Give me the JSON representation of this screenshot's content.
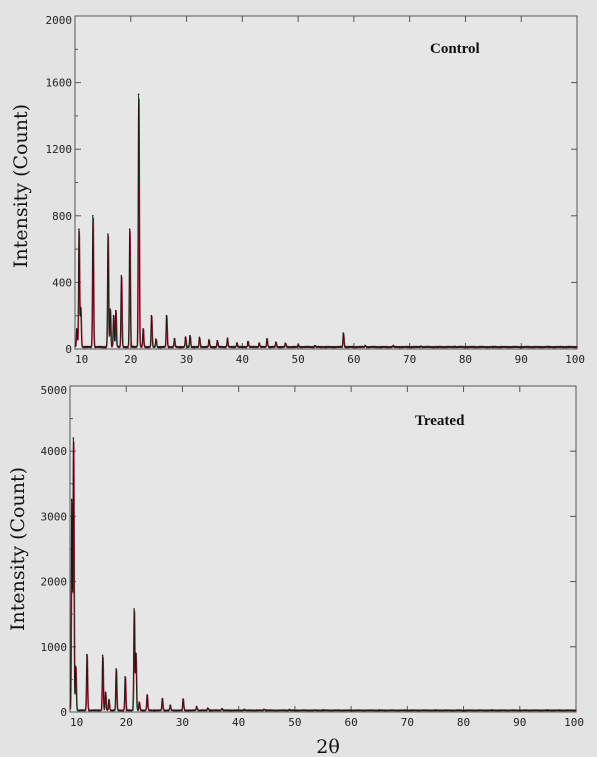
{
  "figure": {
    "background": "#e3e3e3",
    "xlabel": "2θ"
  },
  "chart_data": [
    {
      "type": "line",
      "title": "Control",
      "xlabel": "",
      "ylabel": "Intensity (Count)",
      "xlim": [
        10,
        100
      ],
      "ylim": [
        0,
        2000
      ],
      "xticks": [
        10,
        20,
        30,
        40,
        50,
        60,
        70,
        80,
        90,
        100
      ],
      "yticks": [
        0,
        400,
        800,
        1200,
        1600,
        2000
      ],
      "grid": false,
      "colors": {
        "trace": "#1a1a1a",
        "fit": "#b3202a",
        "frame": "#555555"
      },
      "baseline": 12,
      "peaks": [
        {
          "x": 10.3,
          "y": 120
        },
        {
          "x": 10.7,
          "y": 720
        },
        {
          "x": 11.0,
          "y": 250
        },
        {
          "x": 13.2,
          "y": 800
        },
        {
          "x": 15.9,
          "y": 690
        },
        {
          "x": 16.3,
          "y": 240
        },
        {
          "x": 16.9,
          "y": 200
        },
        {
          "x": 17.3,
          "y": 230
        },
        {
          "x": 18.3,
          "y": 440
        },
        {
          "x": 19.8,
          "y": 720
        },
        {
          "x": 21.4,
          "y": 1530
        },
        {
          "x": 22.2,
          "y": 120
        },
        {
          "x": 23.7,
          "y": 200
        },
        {
          "x": 24.5,
          "y": 60
        },
        {
          "x": 26.4,
          "y": 200
        },
        {
          "x": 27.8,
          "y": 60
        },
        {
          "x": 29.8,
          "y": 70
        },
        {
          "x": 30.6,
          "y": 80
        },
        {
          "x": 32.3,
          "y": 70
        },
        {
          "x": 34.0,
          "y": 55
        },
        {
          "x": 35.5,
          "y": 50
        },
        {
          "x": 37.3,
          "y": 60
        },
        {
          "x": 39.0,
          "y": 35
        },
        {
          "x": 41.0,
          "y": 45
        },
        {
          "x": 43.0,
          "y": 35
        },
        {
          "x": 44.4,
          "y": 60
        },
        {
          "x": 46.0,
          "y": 40
        },
        {
          "x": 47.7,
          "y": 35
        },
        {
          "x": 50.0,
          "y": 25
        },
        {
          "x": 53.0,
          "y": 20
        },
        {
          "x": 58.1,
          "y": 95
        },
        {
          "x": 62.0,
          "y": 20
        },
        {
          "x": 67.0,
          "y": 18
        },
        {
          "x": 72.0,
          "y": 16
        },
        {
          "x": 78.0,
          "y": 15
        }
      ]
    },
    {
      "type": "line",
      "title": "Treated",
      "xlabel": "2θ",
      "ylabel": "Intensity (Count)",
      "xlim": [
        10,
        100
      ],
      "ylim": [
        0,
        5000
      ],
      "xticks": [
        10,
        20,
        30,
        40,
        50,
        60,
        70,
        80,
        90,
        100
      ],
      "yticks": [
        0,
        1000,
        2000,
        3000,
        4000,
        5000
      ],
      "grid": false,
      "colors": {
        "trace": "#1a1a1a",
        "fit": "#b3202a",
        "frame": "#555555"
      },
      "baseline": 25,
      "peaks": [
        {
          "x": 10.3,
          "y": 3250
        },
        {
          "x": 10.6,
          "y": 4200
        },
        {
          "x": 11.0,
          "y": 700
        },
        {
          "x": 13.0,
          "y": 880
        },
        {
          "x": 15.8,
          "y": 870
        },
        {
          "x": 16.3,
          "y": 300
        },
        {
          "x": 16.9,
          "y": 180
        },
        {
          "x": 18.2,
          "y": 660
        },
        {
          "x": 19.8,
          "y": 540
        },
        {
          "x": 21.4,
          "y": 1580
        },
        {
          "x": 21.7,
          "y": 900
        },
        {
          "x": 22.3,
          "y": 150
        },
        {
          "x": 23.7,
          "y": 260
        },
        {
          "x": 26.4,
          "y": 200
        },
        {
          "x": 27.8,
          "y": 100
        },
        {
          "x": 30.1,
          "y": 200
        },
        {
          "x": 32.5,
          "y": 80
        },
        {
          "x": 34.5,
          "y": 60
        },
        {
          "x": 37.0,
          "y": 50
        },
        {
          "x": 41.0,
          "y": 40
        },
        {
          "x": 44.5,
          "y": 40
        },
        {
          "x": 49.0,
          "y": 35
        },
        {
          "x": 55.0,
          "y": 30
        },
        {
          "x": 62.0,
          "y": 25
        },
        {
          "x": 80.0,
          "y": 20
        }
      ]
    }
  ]
}
